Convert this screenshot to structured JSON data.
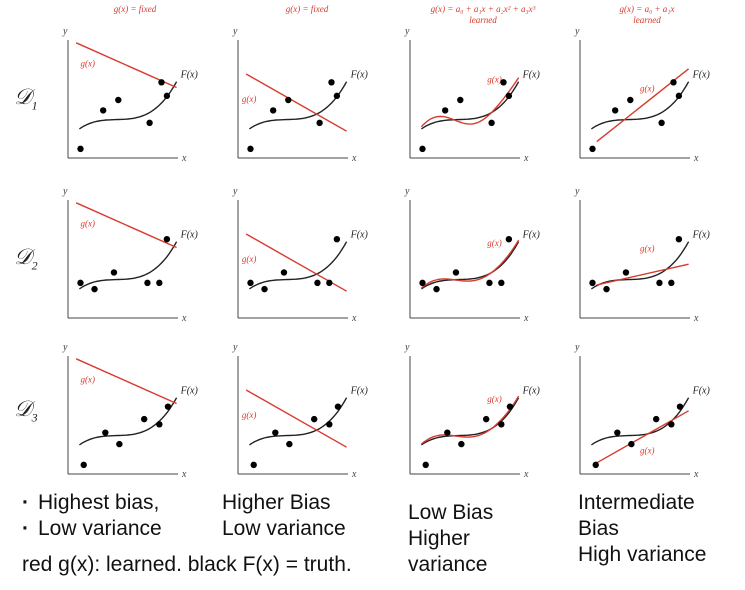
{
  "column_headers": [
    {
      "line1": "g(x) = fixed",
      "line2": ""
    },
    {
      "line1": "g(x) = fixed",
      "line2": ""
    },
    {
      "line1": "g(x) = a₀ + a₁x + a₂x² + a₃x³",
      "line2": "learned"
    },
    {
      "line1": "g(x) = a₀ + a₁x",
      "line2": "learned"
    }
  ],
  "row_labels": [
    {
      "main": "𝒟",
      "sub": "1"
    },
    {
      "main": "𝒟",
      "sub": "2"
    },
    {
      "main": "𝒟",
      "sub": "3"
    }
  ],
  "axis_labels": {
    "y": "y",
    "x": "x"
  },
  "curve_labels": {
    "g": "g(x)",
    "F": "F(x)"
  },
  "colors": {
    "g": "#d83a2e",
    "F": "#222222",
    "axis": "#444444",
    "points": "#000000"
  },
  "notes": {
    "col1_line1": "Highest bias,",
    "col1_line2": "Low variance",
    "col2_line1": "Higher Bias",
    "col2_line2": "Low variance",
    "col3_line1": "Low Bias",
    "col3_line2": "Higher",
    "col3_line3": "variance",
    "col4_line1": "Intermediate",
    "col4_line2": "Bias",
    "col4_line3": "High variance",
    "bottom_line": "red g(x): learned. black F(x) = truth."
  }
}
